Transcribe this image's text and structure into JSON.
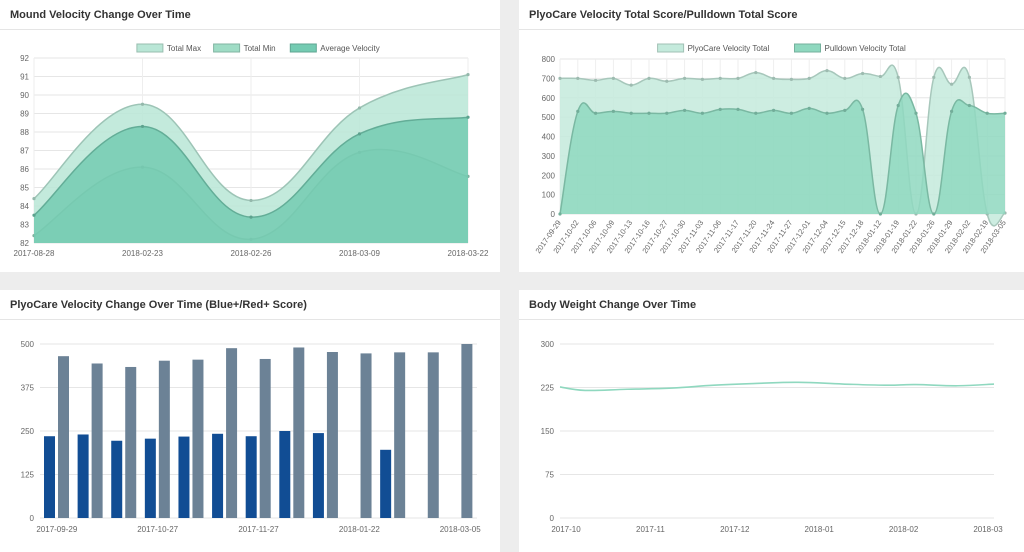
{
  "panels": {
    "mound": {
      "title": "Mound Velocity Change Over Time"
    },
    "plyo_pull": {
      "title": "PlyoCare Velocity Total Score/Pulldown Total Score"
    },
    "plyo_change": {
      "title": "PlyoCare Velocity Change Over Time (Blue+/Red+ Score)"
    },
    "body_weight": {
      "title": "Body Weight Change Over Time"
    }
  },
  "chart_data": [
    {
      "id": "mound",
      "type": "area",
      "title": "Mound Velocity Change Over Time",
      "categories": [
        "2017-08-28",
        "2018-02-23",
        "2018-02-26",
        "2018-03-09",
        "2018-03-22"
      ],
      "series": [
        {
          "name": "Total Max",
          "values": [
            84.4,
            89.5,
            84.3,
            89.3,
            91.1
          ],
          "color": "#b9e6d6"
        },
        {
          "name": "Total Min",
          "values": [
            82.4,
            86.1,
            82.2,
            86.9,
            85.6
          ],
          "color": "#9fdcc5"
        },
        {
          "name": "Average Velocity",
          "values": [
            83.5,
            88.3,
            83.4,
            87.9,
            88.8
          ],
          "color": "#74cbb2"
        }
      ],
      "ylim": [
        82,
        92
      ],
      "yticks": [
        82,
        83,
        84,
        85,
        86,
        87,
        88,
        89,
        90,
        91,
        92
      ],
      "grid": true,
      "legend": "top-center"
    },
    {
      "id": "plyo_pull",
      "type": "area",
      "title": "PlyoCare Velocity Total Score/Pulldown Total Score",
      "categories": [
        "2017-09-29",
        "2017-10-02",
        "2017-10-06",
        "2017-10-09",
        "2017-10-13",
        "2017-10-16",
        "2017-10-27",
        "2017-10-30",
        "2017-11-03",
        "2017-11-06",
        "2017-11-17",
        "2017-11-20",
        "2017-11-24",
        "2017-11-27",
        "2017-12-01",
        "2017-12-04",
        "2017-12-15",
        "2017-12-18",
        "2018-01-12",
        "2018-01-19",
        "2018-01-22",
        "2018-01-26",
        "2018-01-29",
        "2018-02-02",
        "2018-02-19",
        "2018-03-05"
      ],
      "series": [
        {
          "name": "PlyoCare Velocity Total",
          "values": [
            700,
            700,
            690,
            700,
            665,
            700,
            685,
            700,
            695,
            700,
            700,
            730,
            700,
            695,
            700,
            740,
            700,
            725,
            710,
            705,
            0,
            705,
            670,
            705,
            0,
            5
          ],
          "color": "#c4eadc"
        },
        {
          "name": "Pulldown Velocity Total",
          "values": [
            0,
            530,
            520,
            530,
            520,
            520,
            520,
            535,
            520,
            540,
            540,
            520,
            535,
            520,
            545,
            520,
            535,
            540,
            0,
            560,
            520,
            0,
            530,
            560,
            520,
            520
          ],
          "color": "#8fd8bf"
        }
      ],
      "ylim": [
        0,
        800
      ],
      "yticks": [
        0,
        100,
        200,
        300,
        400,
        500,
        600,
        700,
        800
      ],
      "grid": true,
      "legend": "top-center"
    },
    {
      "id": "plyo_change",
      "type": "bar",
      "title": "PlyoCare Velocity Change Over Time (Blue+/Red+ Score)",
      "categories": [
        "2017-09-29",
        "2017-10-09",
        "2017-10-16",
        "2017-10-27",
        "2017-11-03",
        "2017-11-17",
        "2017-11-27",
        "2017-12-04",
        "2017-12-18",
        "2018-01-22",
        "2018-01-29",
        "2018-02-19",
        "2018-03-05"
      ],
      "xtick_labels": [
        "2017-09-29",
        "",
        "2017-10-27",
        "",
        "2017-11-27",
        "",
        "2018-01-22",
        "",
        "2018-03-05"
      ],
      "series": [
        {
          "name": "Blue+",
          "values": [
            235,
            240,
            222,
            228,
            234,
            242,
            235,
            250,
            244,
            0,
            196,
            0,
            0
          ],
          "color": "#114d94"
        },
        {
          "name": "Red+",
          "values": [
            465,
            444,
            434,
            452,
            455,
            488,
            457,
            490,
            477,
            473,
            476,
            476,
            500
          ],
          "color": "#6c8296"
        }
      ],
      "ylim": [
        0,
        500
      ],
      "yticks": [
        0,
        125,
        250,
        375,
        500
      ],
      "grid": true
    },
    {
      "id": "body_weight",
      "type": "line",
      "title": "Body Weight Change Over Time",
      "x": [
        "2017-10-01",
        "2017-10-10",
        "2017-10-25",
        "2017-11-10",
        "2017-11-25",
        "2017-12-10",
        "2017-12-25",
        "2018-01-10",
        "2018-01-25",
        "2018-02-05",
        "2018-02-20",
        "2018-03-05"
      ],
      "values": [
        226,
        220,
        222,
        224,
        229,
        232,
        234,
        231,
        229,
        230,
        228,
        231
      ],
      "xtick_labels": [
        "2017-10",
        "2017-11",
        "2017-12",
        "2018-01",
        "2018-02",
        "2018-03"
      ],
      "ylim": [
        0,
        300
      ],
      "yticks": [
        0,
        75,
        150,
        225,
        300
      ],
      "color": "#8fd8bf",
      "grid": true
    }
  ]
}
